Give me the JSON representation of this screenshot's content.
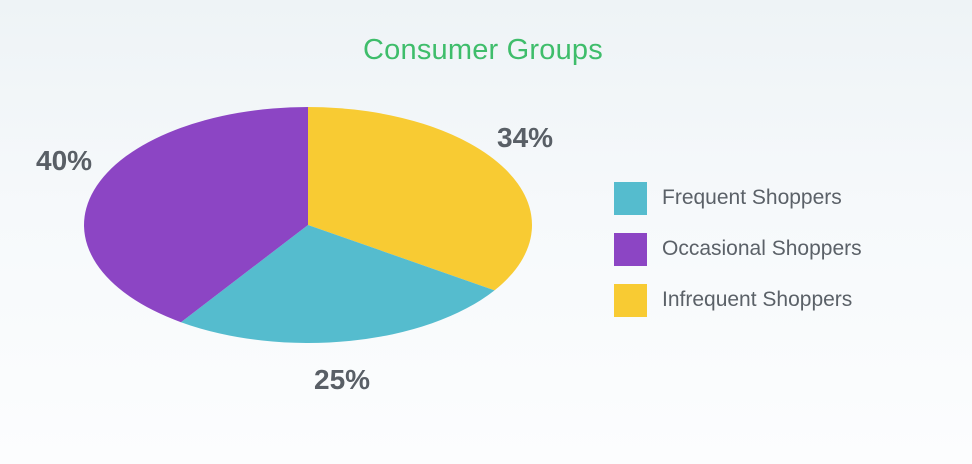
{
  "chart_data": {
    "type": "pie",
    "title": "Consumer Groups",
    "categories": [
      "Frequent Shoppers",
      "Occasional Shoppers",
      "Infrequent Shoppers"
    ],
    "values": [
      25,
      40,
      34
    ],
    "labels": [
      "25%",
      "40%",
      "34%"
    ],
    "colors": [
      "#55bcce",
      "#8c45c4",
      "#f8cb33"
    ],
    "legend": "right"
  }
}
